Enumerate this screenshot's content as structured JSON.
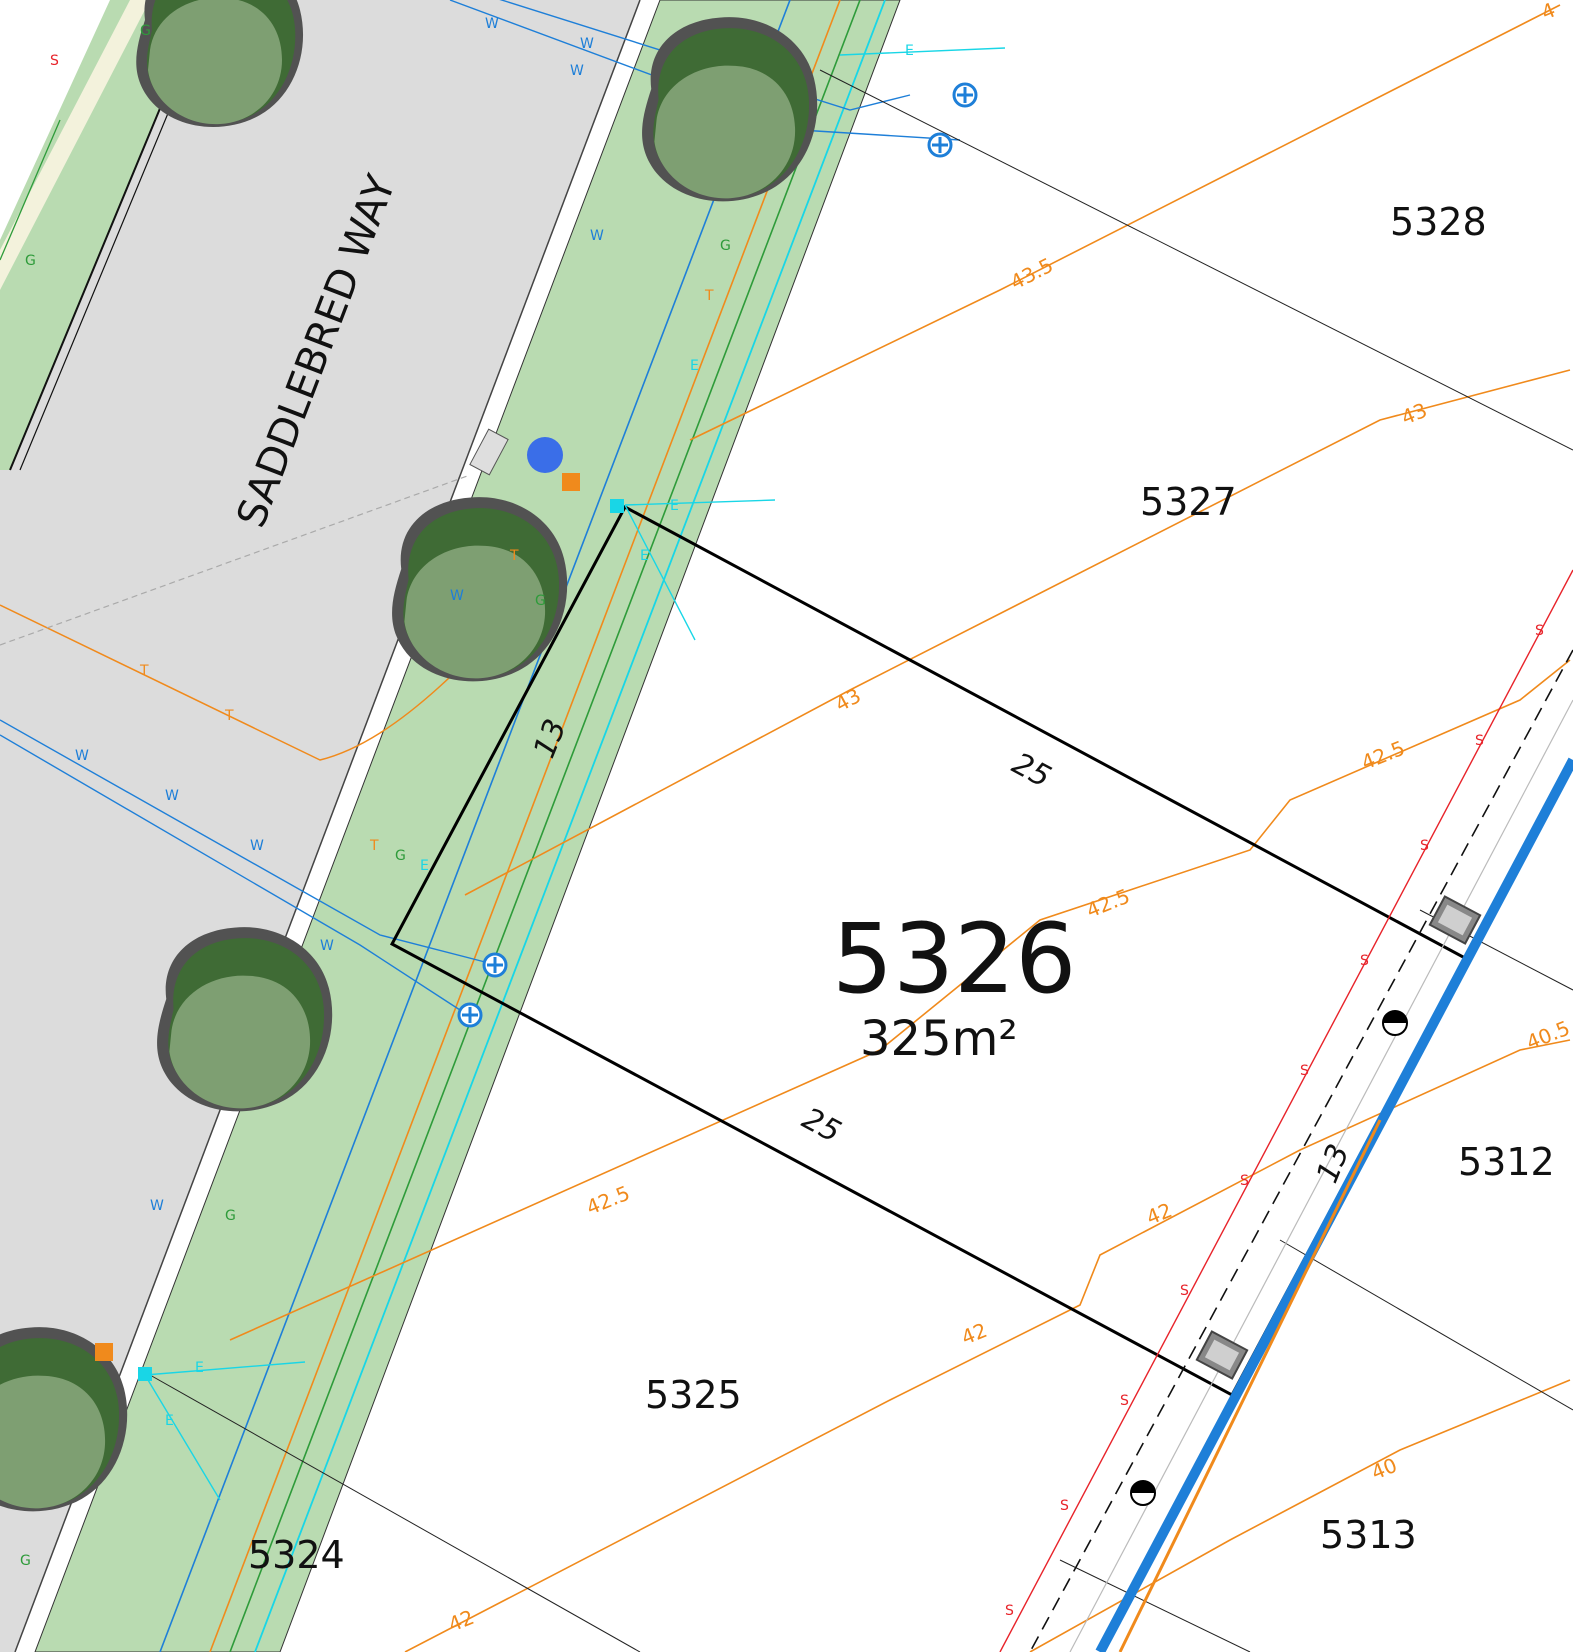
{
  "street": {
    "name": "SADDLEBRED WAY"
  },
  "subject_lot": {
    "number": "5326",
    "area": "325m²",
    "frontage": "13",
    "rear": "13",
    "side_north": "25",
    "side_south": "25"
  },
  "lots": {
    "l5328": "5328",
    "l5327": "5327",
    "l5325": "5325",
    "l5324": "5324",
    "l5312": "5312",
    "l5313": "5313"
  },
  "contours": {
    "c435": "43.5",
    "c43a": "43",
    "c43b": "43",
    "c425a": "42.5",
    "c425b": "42.5",
    "c425c": "42.5",
    "c42a": "42",
    "c42b": "42",
    "c42c": "42",
    "c40": "40",
    "c405": "40.5",
    "c4top": "4"
  },
  "service_codes": {
    "sewer": "S",
    "water": "W",
    "gas": "G",
    "electric": "E",
    "telecom": "T"
  },
  "colors": {
    "sewer": "#e8232a",
    "water": "#1e7fd8",
    "gas": "#2e9b3a",
    "electric": "#19d6e6",
    "telecom": "#f08a1c",
    "contour": "#f08a1c",
    "verge": "#b9dbb1",
    "road": "#dcdcdc",
    "tree_dark": "#3f6b35",
    "tree_light": "#7e9f72"
  }
}
